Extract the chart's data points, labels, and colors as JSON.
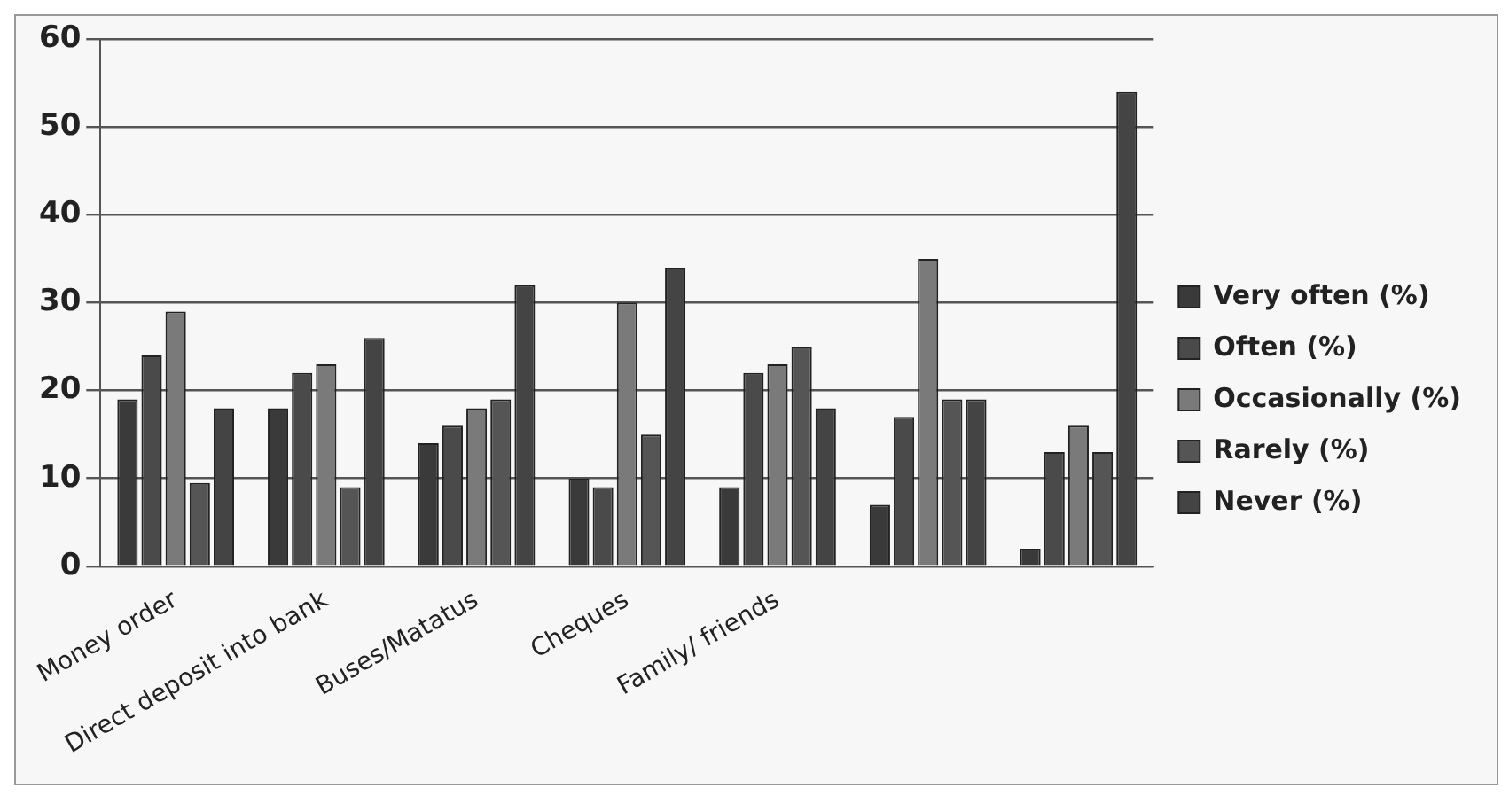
{
  "chart_data": {
    "type": "bar",
    "categories": [
      "Money order",
      "Direct deposit into bank",
      "Buses/Matatus",
      "Cheques",
      "Family/ friends",
      null,
      null
    ],
    "series": [
      {
        "name": "Very often (%)",
        "color": "#3a3a3a",
        "values": [
          19,
          18,
          14,
          10,
          9,
          7,
          2
        ]
      },
      {
        "name": "Often (%)",
        "color": "#4a4a4a",
        "values": [
          24,
          22,
          16,
          9,
          22,
          17,
          13
        ]
      },
      {
        "name": "Occasionally (%)",
        "color": "#7a7a7a",
        "values": [
          29,
          23,
          18,
          30,
          23,
          35,
          16
        ]
      },
      {
        "name": "Rarely (%)",
        "color": "#555555",
        "values": [
          9.5,
          9,
          19,
          15,
          25,
          19,
          13
        ]
      },
      {
        "name": "Never (%)",
        "color": "#444444",
        "values": [
          18,
          26,
          32,
          34,
          18,
          19,
          54
        ]
      }
    ],
    "ylim": [
      0,
      60
    ],
    "yticks": [
      0,
      10,
      20,
      30,
      40,
      50,
      60
    ],
    "grid": "y",
    "legend": "right"
  }
}
